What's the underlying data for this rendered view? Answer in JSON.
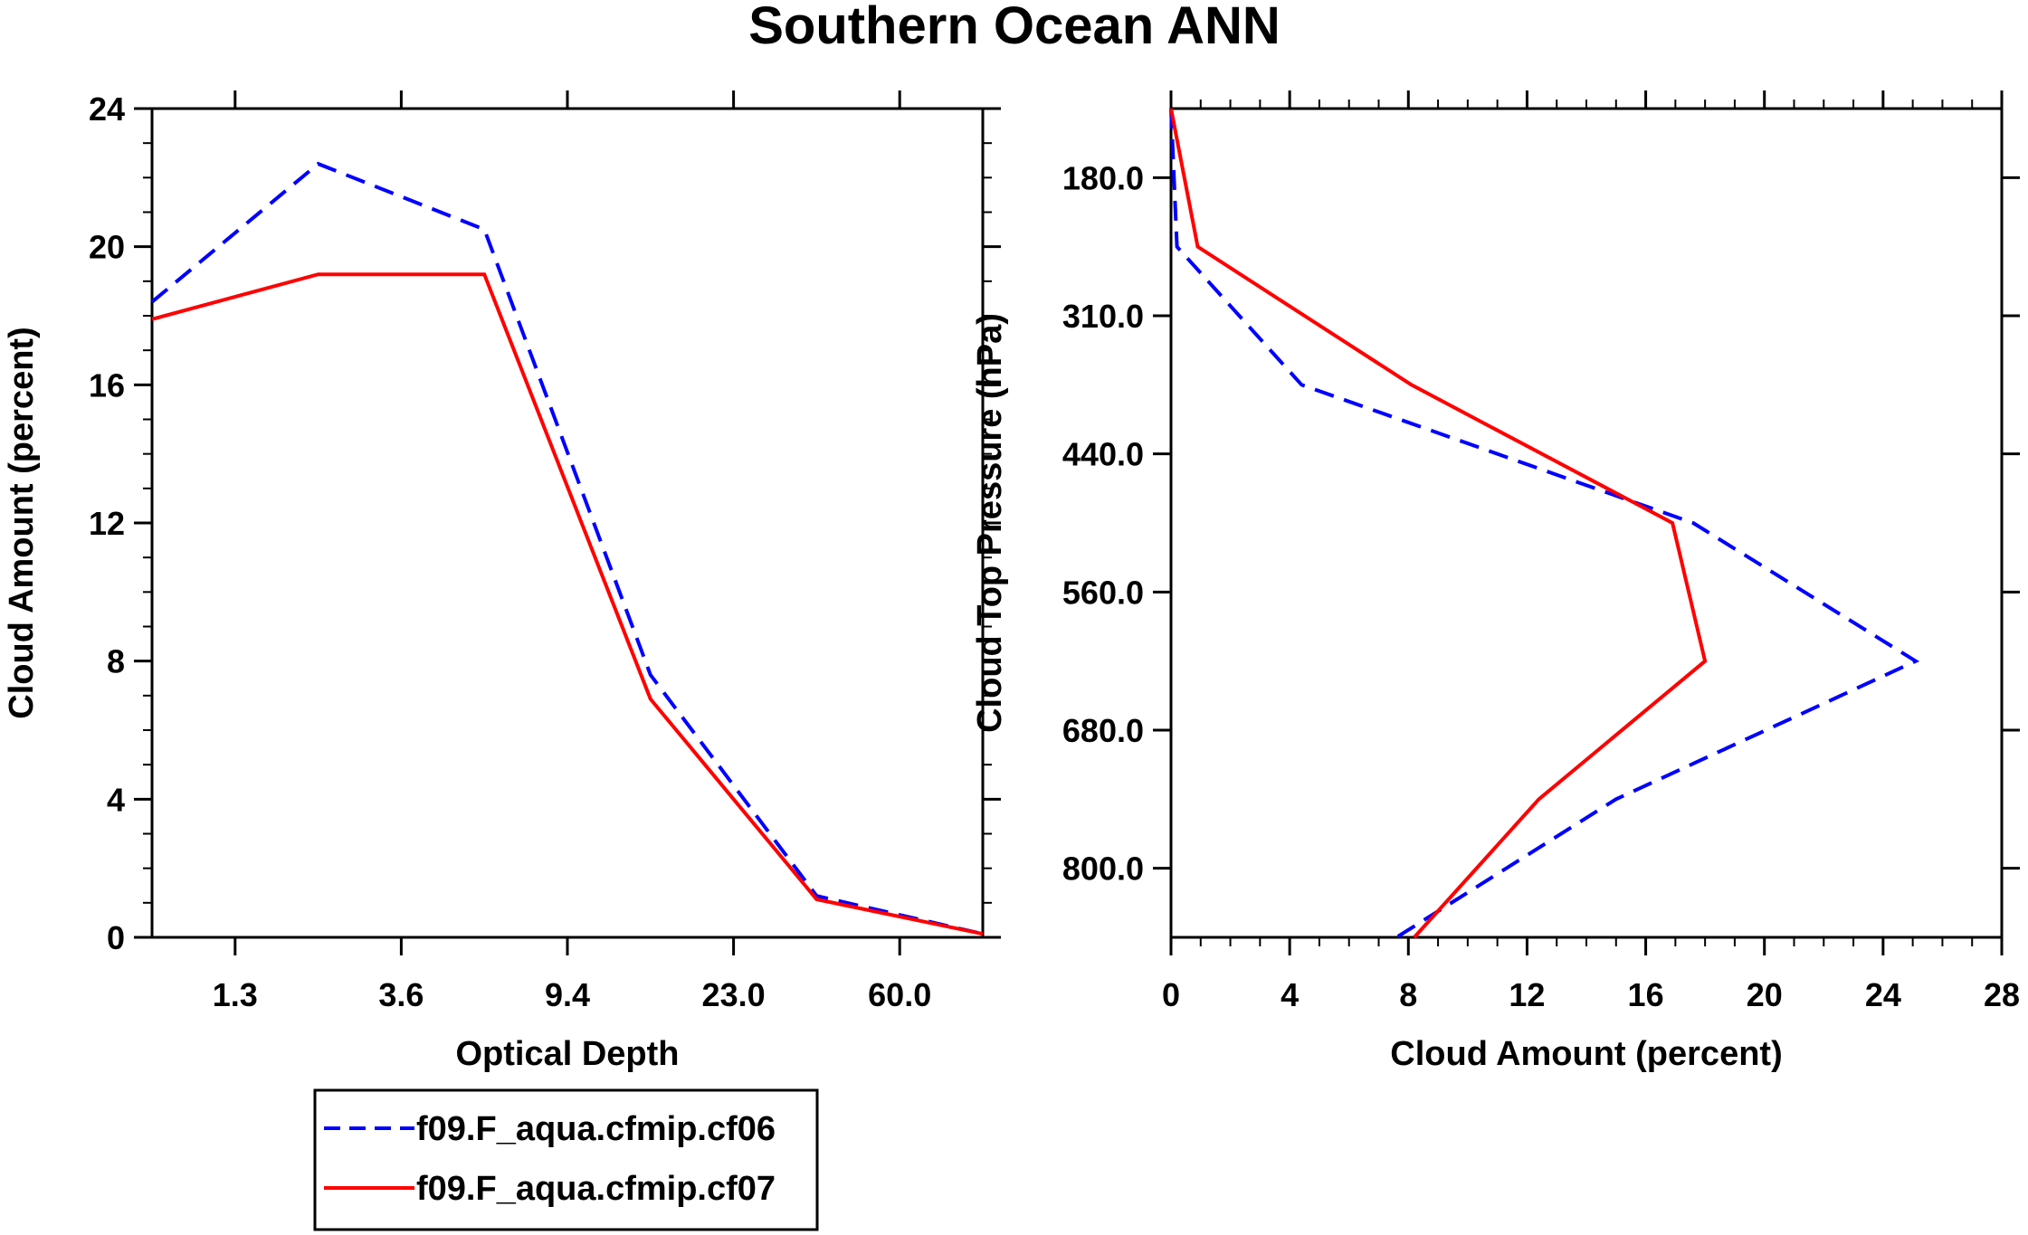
{
  "title": "Southern Ocean ANN",
  "colors": {
    "series1": "#0000ff",
    "series2": "#ff0000"
  },
  "legend": {
    "entries": [
      {
        "label": "f09.F_aqua.cfmip.cf06",
        "style": "dashed",
        "color": "#0000ff"
      },
      {
        "label": "f09.F_aqua.cfmip.cf07",
        "style": "solid",
        "color": "#ff0000"
      }
    ]
  },
  "chart_data": [
    {
      "type": "line",
      "xlabel": "Optical Depth",
      "ylabel": "Cloud Amount (percent)",
      "ylim": [
        0,
        24
      ],
      "y_ticks": [
        0,
        4,
        8,
        12,
        16,
        20,
        24
      ],
      "x_bin_range": [
        0,
        10
      ],
      "x_ticks": [
        {
          "pos": 2,
          "label": "1.3"
        },
        {
          "pos": 4,
          "label": "3.6"
        },
        {
          "pos": 6,
          "label": "9.4"
        },
        {
          "pos": 8,
          "label": "23.0"
        },
        {
          "pos": 10,
          "label": "60.0"
        }
      ],
      "series": [
        {
          "name": "f09.F_aqua.cfmip.cf06",
          "x": [
            0,
            2,
            4,
            6,
            8,
            10
          ],
          "values": [
            18.4,
            22.4,
            20.5,
            7.6,
            1.2,
            0.1
          ]
        },
        {
          "name": "f09.F_aqua.cfmip.cf07",
          "x": [
            0,
            2,
            4,
            6,
            8,
            10
          ],
          "values": [
            17.9,
            19.2,
            19.2,
            6.9,
            1.1,
            0.1
          ]
        }
      ]
    },
    {
      "type": "line",
      "orientation": "horizontal",
      "xlabel": "Cloud Amount (percent)",
      "ylabel": "Cloud Top Pressure (hPa)",
      "xlim": [
        0,
        28
      ],
      "x_ticks": [
        0,
        4,
        8,
        12,
        16,
        20,
        24,
        28
      ],
      "y_bin_range": [
        0,
        12
      ],
      "y_ticks": [
        {
          "pos": 1,
          "label": "180.0"
        },
        {
          "pos": 3,
          "label": "310.0"
        },
        {
          "pos": 5,
          "label": "440.0"
        },
        {
          "pos": 7,
          "label": "560.0"
        },
        {
          "pos": 9,
          "label": "680.0"
        },
        {
          "pos": 11,
          "label": "800.0"
        }
      ],
      "series": [
        {
          "name": "f09.F_aqua.cfmip.cf06",
          "y": [
            0,
            2,
            4,
            6,
            8,
            10,
            12
          ],
          "values": [
            0.0,
            0.2,
            4.4,
            17.6,
            25.1,
            15.0,
            7.6
          ]
        },
        {
          "name": "f09.F_aqua.cfmip.cf07",
          "y": [
            0,
            2,
            4,
            6,
            8,
            10,
            12
          ],
          "values": [
            0.0,
            0.9,
            8.1,
            16.9,
            18.0,
            12.4,
            8.2
          ]
        }
      ]
    }
  ]
}
